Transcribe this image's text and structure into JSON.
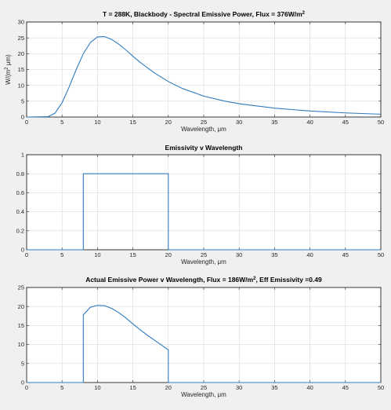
{
  "chart_data": [
    {
      "type": "line",
      "title": "T = 288K, Blackbody - Spectral Emissive Power, Flux = 376W/m",
      "title_sup": "2",
      "xlabel": "Wavelength, μm",
      "ylabel": "W/(m",
      "ylabel_sup": "2",
      "ylabel_tail": " μm)",
      "xlim": [
        0,
        50
      ],
      "ylim": [
        0,
        30
      ],
      "xticks": [
        0,
        5,
        10,
        15,
        20,
        25,
        30,
        35,
        40,
        45,
        50
      ],
      "yticks": [
        0,
        5,
        10,
        15,
        20,
        25,
        30
      ],
      "grid": true,
      "series": [
        {
          "x": [
            0,
            3,
            4,
            5,
            6,
            7,
            8,
            9,
            10,
            11,
            12,
            13,
            14,
            15,
            16,
            18,
            20,
            22,
            25,
            28,
            30,
            35,
            40,
            45,
            50
          ],
          "y": [
            0,
            0.1,
            1.2,
            4.5,
            9.5,
            15.0,
            20.0,
            23.5,
            25.3,
            25.4,
            24.5,
            23.0,
            21.2,
            19.2,
            17.3,
            14.0,
            11.2,
            9.0,
            6.6,
            5.0,
            4.2,
            2.8,
            1.9,
            1.3,
            0.9
          ]
        }
      ]
    },
    {
      "type": "line",
      "title": "Emissivity v Wavelength",
      "xlabel": "Wavelength, μm",
      "xlim": [
        0,
        50
      ],
      "ylim": [
        0,
        1
      ],
      "xticks": [
        0,
        5,
        10,
        15,
        20,
        25,
        30,
        35,
        40,
        45,
        50
      ],
      "yticks": [
        0,
        0.2,
        0.4,
        0.6,
        0.8,
        1
      ],
      "grid": true,
      "series": [
        {
          "x": [
            0,
            8,
            8,
            20,
            20,
            50
          ],
          "y": [
            0,
            0,
            0.8,
            0.8,
            0,
            0
          ]
        }
      ]
    },
    {
      "type": "line",
      "title": "Actual Emissive Power v Wavelength, Flux = 186W/m",
      "title_sup": "2",
      "title_tail": ", Eff Emissivity =0.49",
      "xlabel": "Wavelength, μm",
      "xlim": [
        0,
        50
      ],
      "ylim": [
        0,
        25
      ],
      "xticks": [
        0,
        5,
        10,
        15,
        20,
        25,
        30,
        35,
        40,
        45,
        50
      ],
      "yticks": [
        0,
        5,
        10,
        15,
        20,
        25
      ],
      "grid": true,
      "series": [
        {
          "x": [
            0,
            8,
            8,
            9,
            10,
            11,
            12,
            13,
            14,
            15,
            16,
            17,
            18,
            19,
            20,
            20,
            50
          ],
          "y": [
            0,
            0,
            17.8,
            19.8,
            20.3,
            20.2,
            19.5,
            18.4,
            17.0,
            15.4,
            13.9,
            12.5,
            11.2,
            9.9,
            8.6,
            0,
            0
          ]
        }
      ]
    }
  ],
  "colors": {
    "series": "#2f7bbf",
    "figure_background": "#f0f0f0",
    "axes_background": "#ffffff"
  }
}
